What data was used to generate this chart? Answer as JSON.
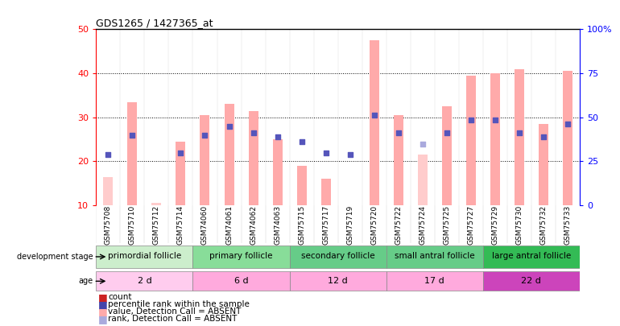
{
  "title": "GDS1265 / 1427365_at",
  "samples": [
    "GSM75708",
    "GSM75710",
    "GSM75712",
    "GSM75714",
    "GSM74060",
    "GSM74061",
    "GSM74062",
    "GSM74063",
    "GSM75715",
    "GSM75717",
    "GSM75719",
    "GSM75720",
    "GSM75722",
    "GSM75724",
    "GSM75725",
    "GSM75727",
    "GSM75729",
    "GSM75730",
    "GSM75732",
    "GSM75733"
  ],
  "bar_values": [
    16.5,
    33.5,
    10.5,
    24.5,
    30.5,
    33.0,
    31.5,
    25.0,
    19.0,
    16.0,
    null,
    47.5,
    30.5,
    21.5,
    32.5,
    39.5,
    40.0,
    41.0,
    28.5,
    40.5
  ],
  "bar_absent": [
    true,
    false,
    true,
    false,
    false,
    false,
    false,
    false,
    false,
    false,
    true,
    false,
    false,
    true,
    false,
    false,
    false,
    false,
    false,
    false
  ],
  "dot_values": [
    21.5,
    26.0,
    null,
    22.0,
    26.0,
    28.0,
    26.5,
    25.5,
    24.5,
    22.0,
    21.5,
    30.5,
    26.5,
    24.0,
    26.5,
    29.5,
    29.5,
    26.5,
    25.5,
    28.5
  ],
  "dot_absent": [
    false,
    false,
    true,
    false,
    false,
    false,
    false,
    false,
    false,
    false,
    false,
    false,
    false,
    true,
    false,
    false,
    false,
    false,
    false,
    false
  ],
  "groups": [
    {
      "label": "primordial follicle",
      "age": "2 d",
      "start": 0,
      "end": 4
    },
    {
      "label": "primary follicle",
      "age": "6 d",
      "start": 4,
      "end": 8
    },
    {
      "label": "secondary follicle",
      "age": "12 d",
      "start": 8,
      "end": 12
    },
    {
      "label": "small antral follicle",
      "age": "17 d",
      "start": 12,
      "end": 16
    },
    {
      "label": "large antral follicle",
      "age": "22 d",
      "start": 16,
      "end": 20
    }
  ],
  "stage_colors": [
    "#CCEECC",
    "#88DD99",
    "#66CC88",
    "#66CC88",
    "#33BB55"
  ],
  "age_colors": [
    "#FFCCEE",
    "#FFAADD",
    "#FFAADD",
    "#FFAADD",
    "#CC44BB"
  ],
  "ylim_left": [
    10,
    50
  ],
  "ylim_right": [
    0,
    100
  ],
  "yticks_left": [
    10,
    20,
    30,
    40,
    50
  ],
  "yticks_right": [
    0,
    25,
    50,
    75,
    100
  ],
  "ytick_labels_right": [
    "0",
    "25",
    "50",
    "75",
    "100%"
  ],
  "bar_color_present": "#FFAAAA",
  "bar_color_absent": "#FFCCCC",
  "dot_color_present": "#5555BB",
  "dot_color_absent": "#AAAADD",
  "grid_yticks": [
    20,
    30,
    40
  ]
}
